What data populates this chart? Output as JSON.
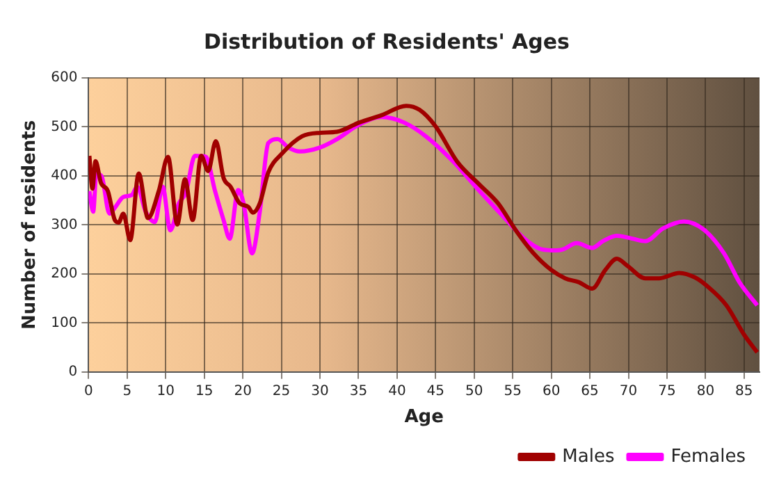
{
  "chart_data": {
    "type": "line",
    "title": "Distribution of Residents' Ages",
    "xlabel": "Age",
    "ylabel": "Number of residents",
    "xlim": [
      0,
      87
    ],
    "xticks": [
      0,
      5,
      10,
      15,
      20,
      25,
      30,
      35,
      40,
      45,
      50,
      55,
      60,
      65,
      70,
      75,
      80,
      85
    ],
    "ylim": [
      0,
      600
    ],
    "yticks": [
      0,
      100,
      200,
      300,
      400,
      500,
      600
    ],
    "grid": true,
    "legend": "bottom right",
    "marker": "none",
    "line_style": "solid",
    "series": [
      {
        "name": "Males",
        "color": "#a00000",
        "x": [
          0.1,
          0.5,
          0.9,
          1.6,
          2.5,
          3.4,
          3.9,
          4.5,
          5.4,
          6.5,
          7.7,
          9.1,
          10.3,
          11.5,
          12.5,
          13.5,
          14.6,
          15.5,
          16.5,
          17.5,
          18.4,
          19.6,
          20.7,
          21.3,
          22.2,
          23.3,
          25.1,
          27.7,
          30,
          32.2,
          35.1,
          38,
          41.2,
          42.9,
          45,
          47.8,
          50.7,
          53.1,
          55.4,
          57.7,
          60,
          61.8,
          63.6,
          65.3,
          67,
          68.5,
          69.9,
          72.2,
          74,
          76.6,
          78.6,
          80.3,
          82.7,
          85,
          86.7
        ],
        "values": [
          441,
          374,
          430,
          386,
          369,
          310,
          305,
          323,
          269,
          405,
          314,
          369,
          439,
          301,
          393,
          310,
          441,
          410,
          471,
          396,
          378,
          344,
          337,
          325,
          344,
          407,
          446,
          481,
          488,
          490,
          509,
          524,
          543,
          535,
          501,
          429,
          382,
          344,
          289,
          242,
          208,
          191,
          183,
          170,
          208,
          231,
          216,
          191,
          191,
          202,
          193,
          174,
          136,
          76,
          40
        ]
      },
      {
        "name": "Females",
        "color": "#ff00ff",
        "x": [
          0.1,
          0.6,
          1.0,
          1.7,
          2.7,
          3.4,
          4.5,
          5.6,
          6.3,
          7.4,
          8.6,
          9.6,
          10.6,
          11.7,
          12.6,
          13.8,
          15.2,
          16.4,
          17.5,
          18.3,
          19.4,
          20.1,
          21.2,
          22.2,
          23.3,
          24.5,
          25.9,
          27.4,
          30,
          32.2,
          35.1,
          38,
          40.9,
          43.8,
          47.3,
          50.7,
          54.2,
          56.5,
          58.8,
          60.6,
          61.5,
          63.3,
          65.3,
          66.7,
          68.5,
          70.5,
          72.2,
          74.5,
          77.2,
          79.8,
          82.4,
          84.4,
          86.7
        ],
        "values": [
          369,
          327,
          405,
          399,
          323,
          335,
          357,
          361,
          378,
          327,
          306,
          378,
          289,
          344,
          365,
          441,
          439,
          369,
          310,
          272,
          371,
          344,
          242,
          327,
          467,
          475,
          458,
          450,
          458,
          475,
          505,
          520,
          509,
          480,
          429,
          369,
          310,
          272,
          250,
          248,
          250,
          263,
          253,
          267,
          278,
          272,
          267,
          293,
          307,
          290,
          242,
          183,
          136
        ]
      }
    ]
  }
}
